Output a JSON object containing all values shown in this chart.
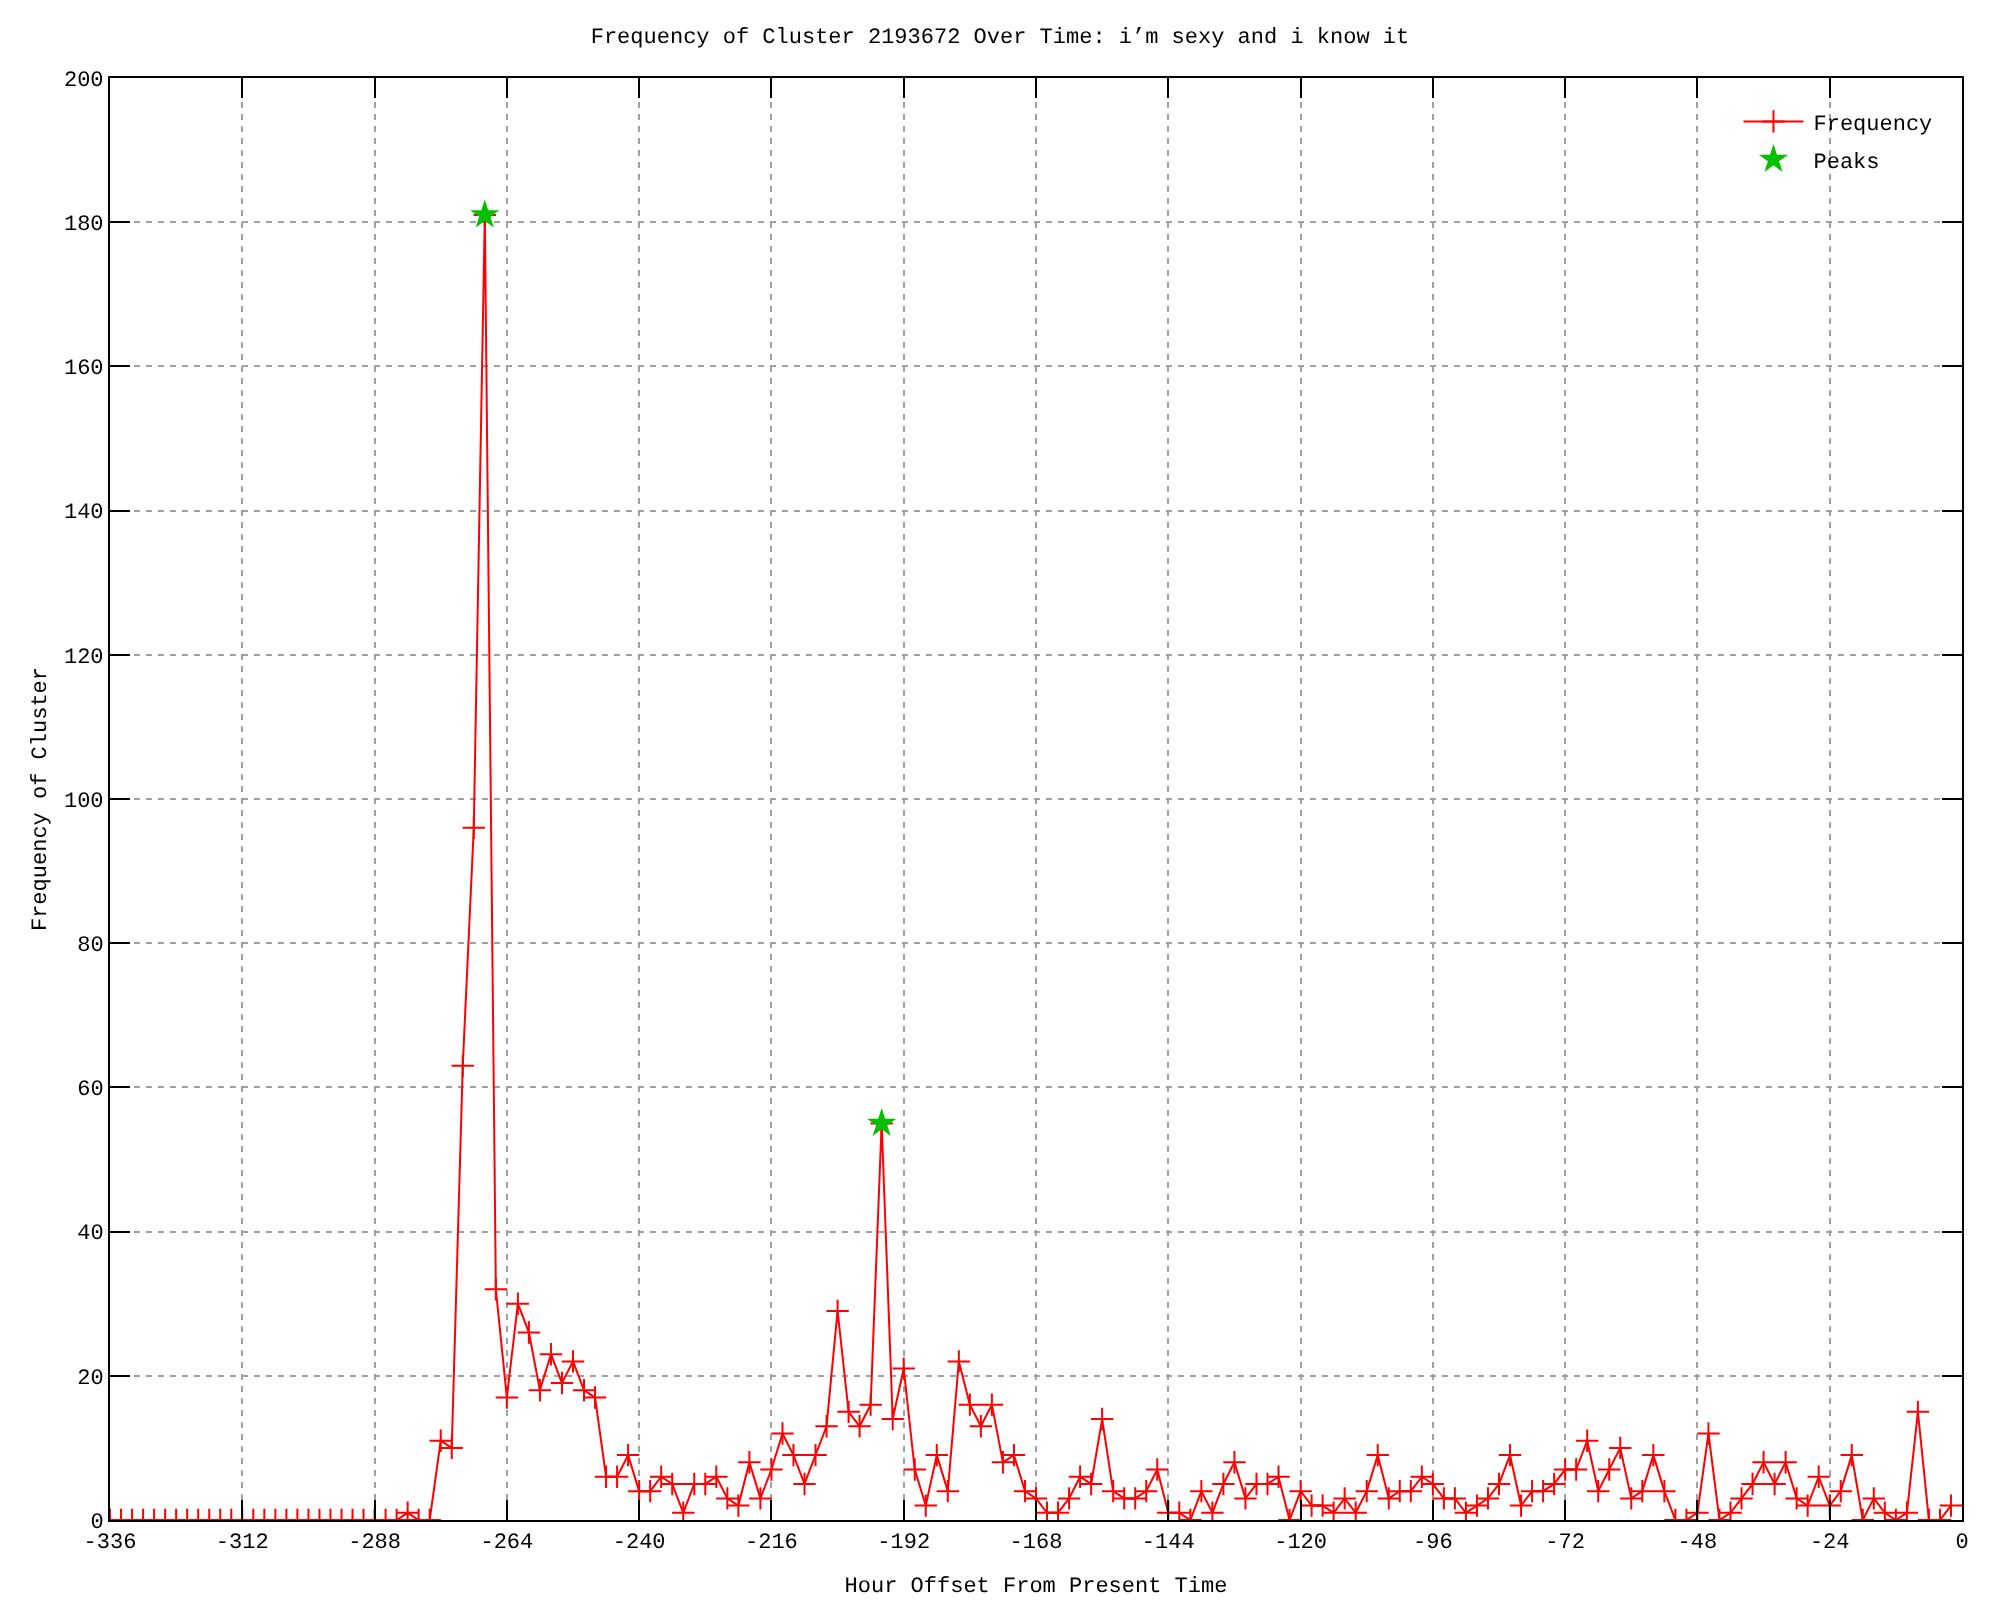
{
  "chart_data": {
    "type": "line",
    "title": "Frequency of Cluster 2193672 Over Time: i’m sexy and i know it",
    "xlabel": "Hour Offset From Present Time",
    "ylabel": "Frequency of Cluster",
    "xlim": [
      -336,
      0
    ],
    "xticks": [
      -336,
      -312,
      -288,
      -264,
      -240,
      -216,
      -192,
      -168,
      -144,
      -120,
      -96,
      -72,
      -48,
      -24,
      0
    ],
    "ylim": [
      0,
      200
    ],
    "yticks": [
      0,
      20,
      40,
      60,
      80,
      100,
      120,
      140,
      160,
      180,
      200
    ],
    "grid": true,
    "legend": "top right",
    "marker": "cross",
    "line_style": "solid",
    "series": [
      {
        "name": "Frequency",
        "color": "#ff0000",
        "x": [
          -336,
          -334,
          -332,
          -330,
          -328,
          -326,
          -324,
          -322,
          -320,
          -318,
          -316,
          -314,
          -312,
          -310,
          -308,
          -306,
          -304,
          -302,
          -300,
          -298,
          -296,
          -294,
          -292,
          -290,
          -288,
          -286,
          -284,
          -282,
          -280,
          -278,
          -276,
          -274,
          -272,
          -270,
          -268,
          -266,
          -264,
          -262,
          -260,
          -258,
          -256,
          -254,
          -252,
          -250,
          -248,
          -246,
          -244,
          -242,
          -240,
          -238,
          -236,
          -234,
          -232,
          -230,
          -228,
          -226,
          -224,
          -222,
          -220,
          -218,
          -216,
          -214,
          -212,
          -210,
          -208,
          -206,
          -204,
          -202,
          -200,
          -198,
          -196,
          -194,
          -192,
          -190,
          -188,
          -186,
          -184,
          -182,
          -180,
          -178,
          -176,
          -174,
          -172,
          -170,
          -168,
          -166,
          -164,
          -162,
          -160,
          -158,
          -156,
          -154,
          -152,
          -150,
          -148,
          -146,
          -144,
          -142,
          -140,
          -138,
          -136,
          -134,
          -132,
          -130,
          -128,
          -126,
          -124,
          -122,
          -120,
          -118,
          -116,
          -114,
          -112,
          -110,
          -108,
          -106,
          -104,
          -102,
          -100,
          -98,
          -96,
          -94,
          -92,
          -90,
          -88,
          -86,
          -84,
          -82,
          -80,
          -78,
          -76,
          -74,
          -72,
          -70,
          -68,
          -66,
          -64,
          -62,
          -60,
          -58,
          -56,
          -54,
          -52,
          -50,
          -48,
          -46,
          -44,
          -42,
          -40,
          -38,
          -36,
          -34,
          -32,
          -30,
          -28,
          -26,
          -24,
          -22,
          -20,
          -18,
          -16,
          -14,
          -12,
          -10,
          -8,
          -6,
          -4,
          -2
        ],
        "values": [
          0,
          0,
          0,
          0,
          0,
          0,
          0,
          0,
          0,
          0,
          0,
          0,
          0,
          0,
          0,
          0,
          0,
          0,
          0,
          0,
          0,
          0,
          0,
          0,
          0,
          0,
          0,
          1,
          0,
          0,
          11,
          10,
          63,
          96,
          181,
          32,
          17,
          30,
          26,
          18,
          23,
          19,
          22,
          18,
          17,
          6,
          6,
          9,
          4,
          4,
          6,
          5,
          1,
          5,
          5,
          6,
          3,
          2,
          8,
          3,
          7,
          12,
          9,
          5,
          9,
          13,
          29,
          15,
          13,
          16,
          55,
          14,
          21,
          7,
          2,
          9,
          4,
          22,
          16,
          13,
          16,
          8,
          9,
          4,
          3,
          1,
          1,
          3,
          6,
          5,
          14,
          4,
          3,
          3,
          4,
          7,
          1,
          1,
          0,
          4,
          1,
          5,
          8,
          3,
          5,
          5,
          6,
          0,
          4,
          2,
          2,
          1,
          3,
          1,
          4,
          9,
          3,
          4,
          4,
          6,
          5,
          3,
          3,
          1,
          2,
          3,
          5,
          9,
          2,
          4,
          4,
          5,
          7,
          7,
          11,
          4,
          7,
          10,
          3,
          4,
          9,
          4,
          0,
          0,
          1,
          12,
          0,
          1,
          3,
          5,
          8,
          5,
          8,
          3,
          2,
          6,
          2,
          4,
          9,
          0,
          3,
          1,
          0,
          1,
          15,
          0,
          0,
          2
        ]
      },
      {
        "name": "Peaks",
        "type": "scatter",
        "color": "#00c000",
        "marker": "star",
        "x": [
          -268,
          -196
        ],
        "values": [
          181,
          55
        ]
      }
    ]
  }
}
